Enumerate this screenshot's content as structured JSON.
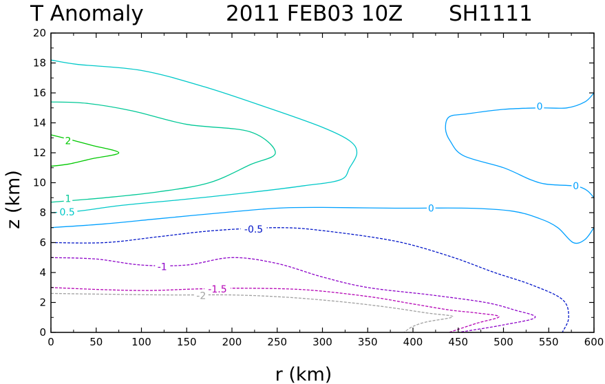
{
  "header": {
    "title_left": "T Anomaly",
    "title_date": "2011 FEB03 10Z",
    "title_storm": "SH1111"
  },
  "chart_data": {
    "type": "contour",
    "title": "T Anomaly",
    "xlabel": "r (km)",
    "ylabel": "z (km)",
    "xlim": [
      0,
      600
    ],
    "ylim": [
      0,
      20
    ],
    "x_ticks": [
      "0",
      "50",
      "100",
      "150",
      "200",
      "250",
      "300",
      "350",
      "400",
      "450",
      "500",
      "550",
      "600"
    ],
    "y_ticks": [
      "0",
      "2",
      "4",
      "6",
      "8",
      "10",
      "12",
      "14",
      "16",
      "18",
      "20"
    ],
    "grid": false,
    "contours": [
      {
        "level": 2,
        "color": "#00c800",
        "dashed": false,
        "labels": [
          {
            "text": "2",
            "r": 19,
            "z": 12.8
          }
        ],
        "paths": [
          [
            [
              0,
              13.2
            ],
            [
              20,
              12.9
            ],
            [
              45,
              12.5
            ],
            [
              75,
              12.0
            ],
            [
              45,
              11.6
            ],
            [
              20,
              11.25
            ],
            [
              0,
              11.1
            ]
          ]
        ]
      },
      {
        "level": 1,
        "color": "#00c896",
        "dashed": false,
        "labels": [
          {
            "text": "1",
            "r": 19,
            "z": 8.95
          }
        ],
        "paths": [
          [
            [
              0,
              15.4
            ],
            [
              40,
              15.3
            ],
            [
              90,
              14.8
            ],
            [
              150,
              13.9
            ],
            [
              220,
              13.4
            ],
            [
              248,
              12.0
            ],
            [
              220,
              11.2
            ],
            [
              175,
              10.0
            ],
            [
              120,
              9.4
            ],
            [
              60,
              9.0
            ],
            [
              0,
              8.7
            ]
          ]
        ]
      },
      {
        "level": 0.5,
        "color": "#00c8c8",
        "dashed": false,
        "labels": [
          {
            "text": "0.5",
            "r": 18,
            "z": 8.05
          }
        ],
        "paths": [
          [
            [
              0,
              18.2
            ],
            [
              30,
              17.9
            ],
            [
              100,
              17.5
            ],
            [
              170,
              16.4
            ],
            [
              240,
              15.0
            ],
            [
              300,
              13.7
            ],
            [
              330,
              12.8
            ],
            [
              338,
              12.0
            ],
            [
              330,
              11.0
            ],
            [
              320,
              10.2
            ],
            [
              280,
              9.8
            ],
            [
              220,
              9.35
            ],
            [
              150,
              8.9
            ],
            [
              80,
              8.5
            ],
            [
              30,
              8.1
            ],
            [
              0,
              8.0
            ]
          ]
        ]
      },
      {
        "level": 0,
        "color": "#00a0ff",
        "dashed": false,
        "labels": [
          {
            "text": "0",
            "r": 420,
            "z": 8.3
          },
          {
            "text": "0",
            "r": 540,
            "z": 15.1
          },
          {
            "text": "0",
            "r": 580,
            "z": 9.8
          }
        ],
        "paths": [
          [
            [
              0,
              7.0
            ],
            [
              60,
              7.25
            ],
            [
              120,
              7.6
            ],
            [
              190,
              8.0
            ],
            [
              250,
              8.3
            ],
            [
              300,
              8.35
            ],
            [
              380,
              8.3
            ],
            [
              460,
              8.3
            ],
            [
              510,
              8.1
            ],
            [
              540,
              7.6
            ],
            [
              560,
              7.0
            ],
            [
              577,
              6.0
            ],
            [
              590,
              6.2
            ],
            [
              600,
              7.0
            ]
          ],
          [
            [
              600,
              16.0
            ],
            [
              590,
              15.4
            ],
            [
              570,
              15.0
            ],
            [
              540,
              15.0
            ],
            [
              500,
              14.9
            ],
            [
              460,
              14.6
            ],
            [
              440,
              14.4
            ],
            [
              436,
              13.6
            ],
            [
              441,
              12.8
            ],
            [
              456,
              11.8
            ],
            [
              500,
              11.0
            ],
            [
              530,
              10.2
            ],
            [
              548,
              9.9
            ],
            [
              575,
              9.8
            ],
            [
              585,
              9.7
            ],
            [
              593,
              9.45
            ],
            [
              600,
              9.0
            ]
          ]
        ]
      },
      {
        "level": -0.5,
        "color": "#0014c8",
        "dashed": true,
        "labels": [
          {
            "text": "-0.5",
            "r": 224,
            "z": 6.9
          }
        ],
        "paths": [
          [
            [
              0,
              6.0
            ],
            [
              60,
              6.0
            ],
            [
              120,
              6.4
            ],
            [
              180,
              6.8
            ],
            [
              250,
              7.0
            ],
            [
              300,
              6.8
            ],
            [
              380,
              6.1
            ],
            [
              440,
              5.1
            ],
            [
              490,
              4.0
            ],
            [
              530,
              3.2
            ],
            [
              565,
              2.2
            ],
            [
              572,
              1.0
            ],
            [
              565,
              0.0
            ]
          ]
        ]
      },
      {
        "level": -1,
        "color": "#8c00c8",
        "dashed": true,
        "labels": [
          {
            "text": "-1",
            "r": 123,
            "z": 4.4
          }
        ],
        "paths": [
          [
            [
              0,
              5.0
            ],
            [
              50,
              4.9
            ],
            [
              100,
              4.5
            ],
            [
              150,
              4.5
            ],
            [
              200,
              5.0
            ],
            [
              250,
              4.6
            ],
            [
              300,
              3.7
            ],
            [
              350,
              3.0
            ],
            [
              420,
              2.5
            ],
            [
              480,
              2.0
            ],
            [
              512,
              1.5
            ],
            [
              535,
              1.0
            ],
            [
              500,
              0.5
            ],
            [
              450,
              0.0
            ]
          ]
        ]
      },
      {
        "level": -1.5,
        "color": "#b400b4",
        "dashed": true,
        "labels": [
          {
            "text": "-1.5",
            "r": 184,
            "z": 2.9
          }
        ],
        "paths": [
          [
            [
              0,
              3.0
            ],
            [
              60,
              2.85
            ],
            [
              110,
              2.8
            ],
            [
              160,
              2.9
            ],
            [
              210,
              2.95
            ],
            [
              280,
              2.85
            ],
            [
              350,
              2.4
            ],
            [
              400,
              1.9
            ],
            [
              440,
              1.5
            ],
            [
              470,
              1.3
            ],
            [
              495,
              1.05
            ],
            [
              470,
              0.6
            ],
            [
              440,
              0.0
            ]
          ]
        ]
      },
      {
        "level": -2,
        "color": "#a0a0a0",
        "dashed": true,
        "labels": [
          {
            "text": "-2",
            "r": 166,
            "z": 2.45
          }
        ],
        "paths": [
          [
            [
              0,
              2.6
            ],
            [
              60,
              2.55
            ],
            [
              130,
              2.5
            ],
            [
              200,
              2.5
            ],
            [
              260,
              2.35
            ],
            [
              320,
              2.05
            ],
            [
              370,
              1.7
            ],
            [
              415,
              1.3
            ],
            [
              444,
              1.05
            ],
            [
              415,
              0.7
            ],
            [
              400,
              0.4
            ],
            [
              390,
              0.0
            ]
          ]
        ]
      }
    ]
  }
}
